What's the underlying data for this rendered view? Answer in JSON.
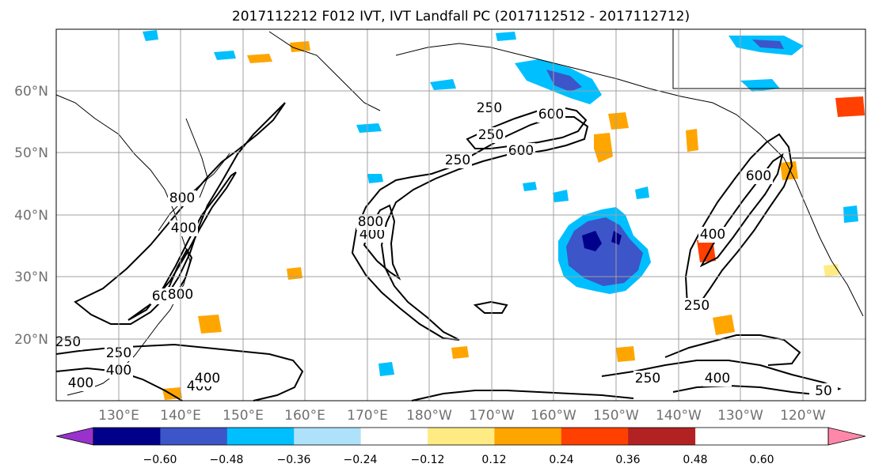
{
  "title": "2017112212 F012 IVT, IVT Landfall PC (2017112512 - 2017112712)",
  "lat_labels": [
    "60°N",
    "50°N",
    "40°N",
    "30°N",
    "20°N"
  ],
  "lon_labels": [
    "130°E",
    "140°E",
    "150°E",
    "160°E",
    "170°E",
    "180°W",
    "170°W",
    "160°W",
    "150°W",
    "140°W",
    "130°W",
    "120°W"
  ],
  "contour_labels": [
    "250",
    "600",
    "250",
    "800",
    "400",
    "600",
    "800",
    "400",
    "800",
    "600",
    "250",
    "400",
    "400",
    "400",
    "250",
    "400",
    "250",
    "600",
    "400",
    "250",
    "400",
    "250",
    "50"
  ],
  "colorbar": {
    "ticks": [
      "−0.60",
      "−0.48",
      "−0.36",
      "−0.24",
      "−0.12",
      "0.12",
      "0.24",
      "0.36",
      "0.48",
      "0.60"
    ],
    "colors": [
      "#9932cc",
      "#00008b",
      "#3c55c8",
      "#00bfff",
      "#aee2fa",
      "#ffffff",
      "#ffeb84",
      "#ffa500",
      "#ff4000",
      "#b22222",
      "#ff88aa"
    ]
  }
}
